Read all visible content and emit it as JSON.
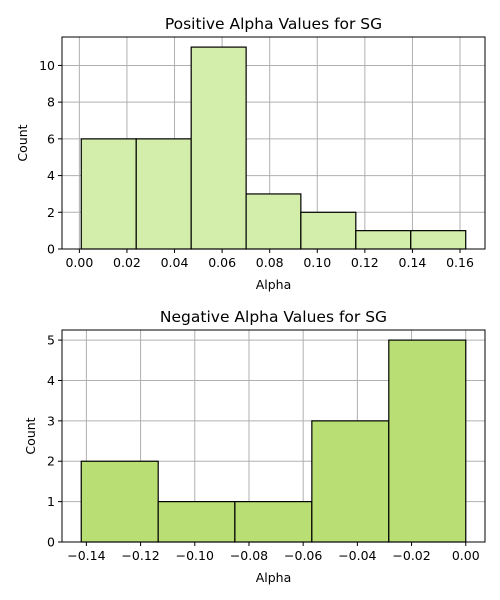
{
  "chart_data": [
    {
      "type": "bar",
      "title": "Positive Alpha Values for SG",
      "xlabel": "Alpha",
      "ylabel": "Count",
      "bin_edges": [
        0.0008,
        0.0239,
        0.047,
        0.0701,
        0.0931,
        0.1162,
        0.1393,
        0.1624
      ],
      "values": [
        6,
        6,
        11,
        3,
        2,
        1,
        1
      ],
      "xlim": [
        -0.0073,
        0.1705
      ],
      "ylim": [
        0,
        11.55
      ],
      "xticks": [
        "0.00",
        "0.02",
        "0.04",
        "0.06",
        "0.08",
        "0.10",
        "0.12",
        "0.14",
        "0.16"
      ],
      "xtick_values": [
        0.0,
        0.02,
        0.04,
        0.06,
        0.08,
        0.1,
        0.12,
        0.14,
        0.16
      ],
      "yticks": [
        "0",
        "2",
        "4",
        "6",
        "8",
        "10"
      ],
      "ytick_values": [
        0,
        2,
        4,
        6,
        8,
        10
      ],
      "grid": true,
      "bar_color": "#d3edaa",
      "edge_color": "#000000"
    },
    {
      "type": "bar",
      "title": "Negative Alpha Values for SG",
      "xlabel": "Alpha",
      "ylabel": "Count",
      "bin_edges": [
        -0.1419,
        -0.1135,
        -0.0852,
        -0.0568,
        -0.0284,
        0.0
      ],
      "values": [
        2,
        1,
        1,
        3,
        5
      ],
      "xlim": [
        -0.149,
        0.0071
      ],
      "ylim": [
        0,
        5.25
      ],
      "xticks": [
        "−0.14",
        "−0.12",
        "−0.10",
        "−0.08",
        "−0.06",
        "−0.04",
        "−0.02",
        "0.00"
      ],
      "xtick_values": [
        -0.14,
        -0.12,
        -0.1,
        -0.08,
        -0.06,
        -0.04,
        -0.02,
        0.0
      ],
      "yticks": [
        "0",
        "1",
        "2",
        "3",
        "4",
        "5"
      ],
      "ytick_values": [
        0,
        1,
        2,
        3,
        4,
        5
      ],
      "grid": true,
      "bar_color": "#b9df74",
      "edge_color": "#000000"
    }
  ]
}
